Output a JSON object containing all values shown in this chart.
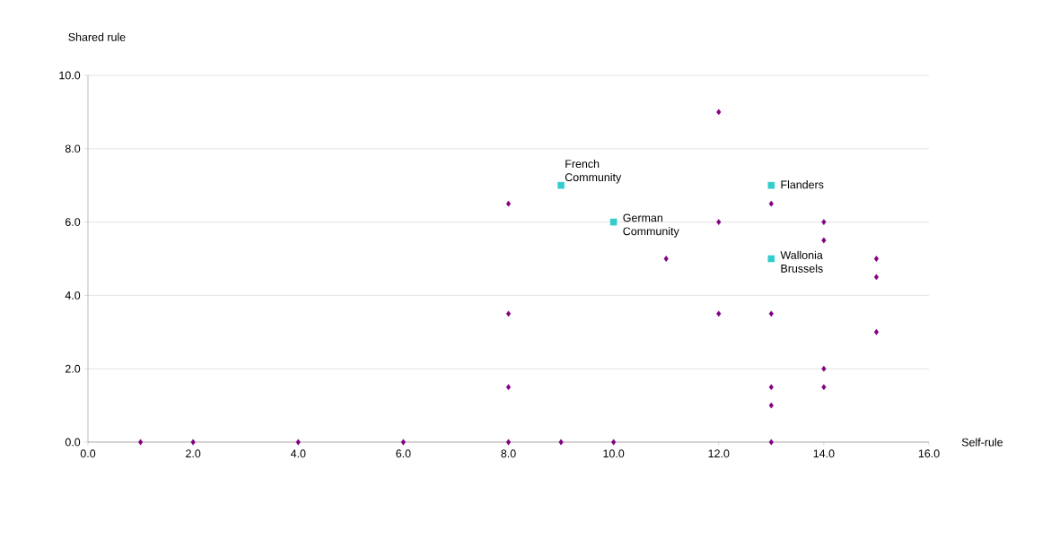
{
  "chart_data": {
    "type": "scatter",
    "xlabel": "Self-rule",
    "ylabel": "Shared rule",
    "xlim": [
      0,
      16
    ],
    "ylim": [
      0,
      10
    ],
    "xticks": [
      {
        "value": 0,
        "label": "0.0"
      },
      {
        "value": 2,
        "label": "2.0"
      },
      {
        "value": 4,
        "label": "4.0"
      },
      {
        "value": 6,
        "label": "6.0"
      },
      {
        "value": 8,
        "label": "8.0"
      },
      {
        "value": 10,
        "label": "10.0"
      },
      {
        "value": 12,
        "label": "12.0"
      },
      {
        "value": 14,
        "label": "14.0"
      },
      {
        "value": 16,
        "label": "16.0"
      }
    ],
    "yticks": [
      {
        "value": 0,
        "label": "0.0"
      },
      {
        "value": 2,
        "label": "2.0"
      },
      {
        "value": 4,
        "label": "4.0"
      },
      {
        "value": 6,
        "label": "6.0"
      },
      {
        "value": 8,
        "label": "8.0"
      },
      {
        "value": 10,
        "label": "10.0"
      }
    ],
    "grid": "y",
    "series": [
      {
        "color": "#800080",
        "marker": "diamond",
        "x": [
          1,
          2,
          4,
          6,
          8,
          9,
          10,
          13,
          8,
          8,
          8,
          11,
          12,
          12,
          12,
          13,
          13,
          13,
          13,
          14,
          14,
          14,
          14,
          15,
          15,
          15
        ],
        "values": [
          0,
          0,
          0,
          0,
          0,
          0,
          0,
          0,
          6.5,
          3.5,
          1.5,
          5,
          9,
          6,
          3.5,
          6.5,
          3.5,
          1.5,
          1,
          6,
          5.5,
          2,
          1.5,
          5,
          4.5,
          3
        ]
      },
      {
        "color": "#33cccc",
        "marker": "square",
        "x": [
          9,
          10,
          13,
          13
        ],
        "values": [
          7,
          6,
          7,
          5
        ]
      }
    ],
    "annotations": [
      {
        "text": "French Community",
        "x": 9,
        "y": 7
      },
      {
        "text": "German Community",
        "x": 10,
        "y": 6
      },
      {
        "text": "Flanders",
        "x": 13,
        "y": 7
      },
      {
        "text": "Wallonia Brussels",
        "x": 13,
        "y": 5
      }
    ]
  }
}
